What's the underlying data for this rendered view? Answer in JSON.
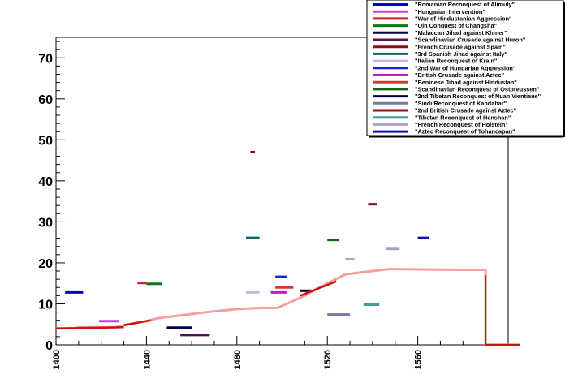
{
  "chart_data": {
    "type": "line",
    "title": "",
    "xlabel": "",
    "ylabel": "",
    "xlim": [
      1400,
      1600
    ],
    "ylim": [
      0,
      75
    ],
    "x_ticks": [
      "1400",
      "1440",
      "1480",
      "1520",
      "1560"
    ],
    "y_ticks": [
      "0",
      "10",
      "20",
      "30",
      "40",
      "50",
      "60",
      "70"
    ],
    "grid": false,
    "legend_position": "top-right",
    "main_line": {
      "color": "#f4a0a0",
      "points": [
        [
          1400,
          4
        ],
        [
          1408,
          4
        ],
        [
          1410,
          4.3
        ],
        [
          1426,
          4.3
        ],
        [
          1432,
          5
        ],
        [
          1440,
          5.8
        ],
        [
          1445,
          6.5
        ],
        [
          1455,
          7.2
        ],
        [
          1470,
          8.2
        ],
        [
          1480,
          8.7
        ],
        [
          1490,
          9
        ],
        [
          1498,
          9
        ],
        [
          1510,
          12
        ],
        [
          1520,
          15
        ],
        [
          1528,
          17.2
        ],
        [
          1540,
          18
        ],
        [
          1548,
          18.5
        ],
        [
          1560,
          18.4
        ],
        [
          1580,
          18.3
        ],
        [
          1590,
          18.3
        ]
      ],
      "drop_x": 1590,
      "zero_after": [
        1591,
        1605
      ]
    },
    "red_overlay_segments": [
      {
        "x": [
          1400,
          1430
        ],
        "y": [
          4,
          4.3
        ]
      },
      {
        "x": [
          1430,
          1442
        ],
        "y": [
          4.8,
          6
        ]
      },
      {
        "x": [
          1508,
          1524
        ],
        "y": [
          12,
          15.5
        ]
      },
      {
        "x": [
          1590,
          1605
        ],
        "y": [
          0,
          0
        ]
      }
    ],
    "red_drop": {
      "x": 1590,
      "y": [
        17,
        0
      ]
    },
    "series": [
      {
        "name": "\"Romanian Reconquest of Alimuly\"",
        "color": "#0000cc",
        "x": [
          1404,
          1412
        ],
        "y": 12.8
      },
      {
        "name": "\"Hungarian Intervention\"",
        "color": "#cc44cc",
        "x": [
          1419,
          1428
        ],
        "y": 5.8
      },
      {
        "name": "\"War of Hindustanian Aggression\"",
        "color": "#cc2222",
        "x": [
          1436,
          1440
        ],
        "y": 15.1
      },
      {
        "name": "\"Qin Conquest of Changsha\"",
        "color": "#117711",
        "x": [
          1440,
          1447
        ],
        "y": 14.9
      },
      {
        "name": "\"Malaccan Jihad against Khmer\"",
        "color": "#000055",
        "x": [
          1449,
          1460
        ],
        "y": 4.2
      },
      {
        "name": "\"Scandinavian Crusade against Huron\"",
        "color": "#551155",
        "x": [
          1455,
          1468
        ],
        "y": 2.4
      },
      {
        "name": "\"French Crusade against Spain\"",
        "color": "#881111",
        "x": [
          1486,
          1488
        ],
        "y": 47
      },
      {
        "name": "\"3rd Spanish Jihad against Italy\"",
        "color": "#116666",
        "x": [
          1484,
          1490
        ],
        "y": 26.1
      },
      {
        "name": "\"Italian Reconquest of Krain\"",
        "color": "#ccb4e8",
        "x": [
          1484,
          1490
        ],
        "y": 12.8
      },
      {
        "name": "\"2nd War of Hungarian Aggression\"",
        "color": "#2222cc",
        "x": [
          1497,
          1502
        ],
        "y": 16.6
      },
      {
        "name": "\"British Crusade against Aztec\"",
        "color": "#bb22bb",
        "x": [
          1495,
          1502
        ],
        "y": 12.8
      },
      {
        "name": "\"Beninese Jihad against Hindustan\"",
        "color": "#dd3333",
        "x": [
          1497,
          1505
        ],
        "y": 14
      },
      {
        "name": "\"Scandinavian Reconquest of Ostpreussen\"",
        "color": "#116611",
        "x": [
          1520,
          1525
        ],
        "y": 25.6
      },
      {
        "name": "\"2nd Tibetan Reconquest of Nuan Vientiane\"",
        "color": "#000044",
        "x": [
          1508,
          1513
        ],
        "y": 13.2
      },
      {
        "name": "\"Sindi Reconquest of Kandahar\"",
        "color": "#7777aa",
        "x": [
          1520,
          1530
        ],
        "y": 7.4
      },
      {
        "name": "\"2nd British Crusade against Aztec\"",
        "color": "#881111",
        "x": [
          1538,
          1542
        ],
        "y": 34.3
      },
      {
        "name": "\"Tibetan Reconquest of Henshan\"",
        "color": "#449999",
        "x": [
          1536,
          1543
        ],
        "y": 9.8
      },
      {
        "name": "\"French Reconquest of Holstein\"",
        "color": "#aaa2cc",
        "x": [
          1546,
          1552
        ],
        "y": 23.4
      },
      {
        "name": "\"Aztec Reconquest of Tohancapan\"",
        "color": "#1111bb",
        "x": [
          1560,
          1565
        ],
        "y": 26.1
      }
    ],
    "extra_marks": [
      {
        "color": "#aaa2cc",
        "x": [
          1528,
          1532
        ],
        "y": 20.9
      }
    ]
  }
}
